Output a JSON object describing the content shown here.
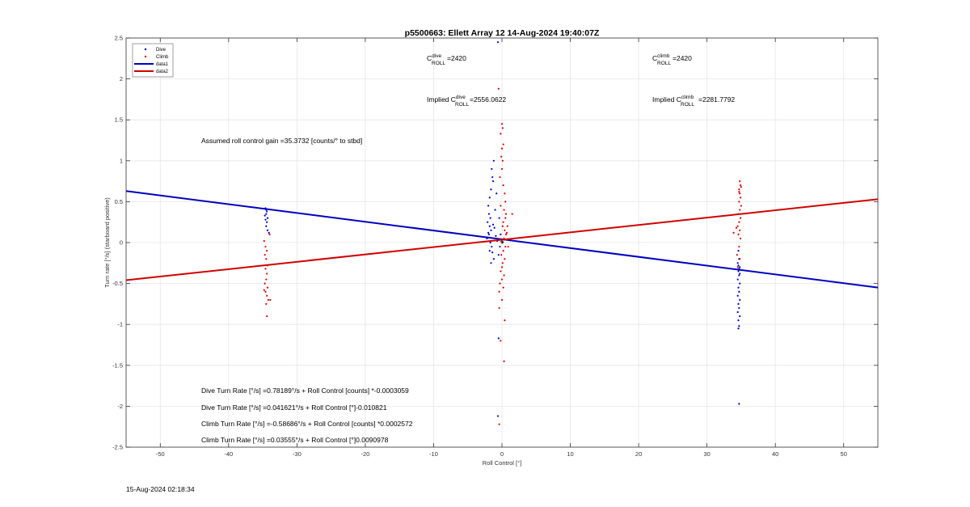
{
  "chart_data": {
    "type": "scatter",
    "title": "p5500663: Ellett Array 12 14-Aug-2024 19:40:07Z",
    "xlabel": "Roll Control [°]",
    "ylabel": "Turn rate [°/s] (starboard positive)",
    "xlim": [
      -55,
      55
    ],
    "ylim": [
      -2.5,
      2.5
    ],
    "xticks": [
      -50,
      -40,
      -30,
      -20,
      -10,
      0,
      10,
      20,
      30,
      40,
      50
    ],
    "yticks": [
      -2.5,
      -2,
      -1.5,
      -1,
      -0.5,
      0,
      0.5,
      1,
      1.5,
      2,
      2.5
    ],
    "grid": true,
    "legend": {
      "position": "top-left",
      "entries": [
        "Dive",
        "Climb",
        "data1",
        "data2"
      ]
    },
    "colors": {
      "dive": "#0000cc",
      "climb": "#dd0000",
      "dive_line": "#0000c0",
      "climb_line": "#d00000"
    },
    "series": [
      {
        "name": "Dive",
        "kind": "points",
        "points": [
          [
            -34.6,
            0.42
          ],
          [
            -34.4,
            0.38
          ],
          [
            -34.5,
            0.35
          ],
          [
            -34.3,
            0.3
          ],
          [
            -34.6,
            0.28
          ],
          [
            -34.4,
            0.25
          ],
          [
            -34.5,
            0.2
          ],
          [
            -34.3,
            0.15
          ],
          [
            -34.1,
            0.12
          ],
          [
            -34.5,
            0.4
          ],
          [
            -34.7,
            0.33
          ],
          [
            -1.2,
            1.0
          ],
          [
            -1.5,
            0.9
          ],
          [
            -1.4,
            0.8
          ],
          [
            -1.3,
            0.75
          ],
          [
            -1.6,
            0.65
          ],
          [
            -1.8,
            0.55
          ],
          [
            -2.0,
            0.45
          ],
          [
            -1.9,
            0.35
          ],
          [
            -1.7,
            0.3
          ],
          [
            -2.1,
            0.25
          ],
          [
            -1.8,
            0.2
          ],
          [
            -1.6,
            0.15
          ],
          [
            -1.9,
            0.1
          ],
          [
            -2.2,
            0.05
          ],
          [
            -1.7,
            0.0
          ],
          [
            -1.5,
            -0.05
          ],
          [
            -1.8,
            -0.1
          ],
          [
            -2.0,
            0.12
          ],
          [
            -1.3,
            0.22
          ],
          [
            -1.1,
            0.18
          ],
          [
            -0.9,
            0.08
          ],
          [
            -0.7,
            0.02
          ],
          [
            -1.4,
            -0.12
          ],
          [
            -1.2,
            -0.2
          ],
          [
            -0.6,
            2.45
          ],
          [
            -0.5,
            -1.17
          ],
          [
            -0.6,
            -2.12
          ],
          [
            -1.0,
            0.4
          ],
          [
            -0.8,
            0.6
          ],
          [
            -0.4,
            0.3
          ],
          [
            -0.3,
            -0.05
          ],
          [
            -0.2,
            0.1
          ],
          [
            -0.5,
            -0.15
          ],
          [
            -1.6,
            -0.25
          ],
          [
            34.6,
            -0.1
          ],
          [
            34.7,
            -0.2
          ],
          [
            34.5,
            -0.25
          ],
          [
            34.8,
            -0.3
          ],
          [
            34.6,
            -0.35
          ],
          [
            34.7,
            -0.4
          ],
          [
            34.5,
            -0.45
          ],
          [
            34.8,
            -0.5
          ],
          [
            34.6,
            -0.55
          ],
          [
            34.7,
            -0.6
          ],
          [
            34.5,
            -0.65
          ],
          [
            34.8,
            -0.7
          ],
          [
            34.6,
            -0.75
          ],
          [
            34.7,
            -0.8
          ],
          [
            34.5,
            -0.85
          ],
          [
            34.8,
            -0.9
          ],
          [
            34.6,
            -0.95
          ],
          [
            34.7,
            -1.02
          ],
          [
            34.6,
            -1.05
          ],
          [
            34.7,
            -0.32
          ],
          [
            34.6,
            -0.28
          ],
          [
            34.8,
            -0.38
          ],
          [
            34.7,
            -1.97
          ]
        ]
      },
      {
        "name": "Climb",
        "kind": "points",
        "points": [
          [
            -34.8,
            0.02
          ],
          [
            -34.6,
            -0.05
          ],
          [
            -34.4,
            -0.1
          ],
          [
            -34.7,
            -0.15
          ],
          [
            -34.5,
            -0.2
          ],
          [
            -34.3,
            -0.28
          ],
          [
            -34.6,
            -0.32
          ],
          [
            -34.4,
            -0.38
          ],
          [
            -34.5,
            -0.45
          ],
          [
            -34.7,
            -0.5
          ],
          [
            -34.3,
            -0.55
          ],
          [
            -34.6,
            -0.6
          ],
          [
            -34.4,
            -0.65
          ],
          [
            -34.2,
            -0.7
          ],
          [
            -34.5,
            -0.75
          ],
          [
            -34.4,
            -0.9
          ],
          [
            -34.0,
            0.1
          ],
          [
            -33.9,
            -0.7
          ],
          [
            -34.8,
            -0.58
          ],
          [
            -0.5,
            1.88
          ],
          [
            0.0,
            1.45
          ],
          [
            0.1,
            1.4
          ],
          [
            -0.2,
            1.33
          ],
          [
            0.2,
            1.2
          ],
          [
            0.0,
            1.15
          ],
          [
            -0.1,
            1.05
          ],
          [
            0.1,
            1.0
          ],
          [
            0.0,
            0.9
          ],
          [
            -0.3,
            0.8
          ],
          [
            0.2,
            0.7
          ],
          [
            0.4,
            0.6
          ],
          [
            0.5,
            0.5
          ],
          [
            -0.2,
            0.45
          ],
          [
            0.3,
            0.4
          ],
          [
            0.6,
            0.35
          ],
          [
            0.5,
            0.3
          ],
          [
            0.2,
            0.25
          ],
          [
            0.1,
            0.2
          ],
          [
            0.4,
            0.15
          ],
          [
            0.6,
            0.1
          ],
          [
            0.3,
            0.05
          ],
          [
            0.1,
            0.0
          ],
          [
            0.5,
            -0.05
          ],
          [
            0.2,
            -0.1
          ],
          [
            -0.1,
            -0.15
          ],
          [
            0.4,
            -0.2
          ],
          [
            0.1,
            -0.25
          ],
          [
            0.0,
            -0.3
          ],
          [
            -0.2,
            -0.35
          ],
          [
            0.3,
            -0.4
          ],
          [
            0.0,
            -0.45
          ],
          [
            -0.3,
            -0.5
          ],
          [
            0.2,
            -0.55
          ],
          [
            -0.4,
            -0.6
          ],
          [
            0.0,
            -0.7
          ],
          [
            -0.4,
            -0.8
          ],
          [
            0.4,
            -0.95
          ],
          [
            -0.2,
            -1.2
          ],
          [
            0.3,
            -1.45
          ],
          [
            -0.4,
            -2.22
          ],
          [
            1.5,
            0.35
          ],
          [
            0.8,
            0.2
          ],
          [
            0.9,
            -0.05
          ],
          [
            0.7,
            0.12
          ],
          [
            34.8,
            0.75
          ],
          [
            34.9,
            0.7
          ],
          [
            34.7,
            0.65
          ],
          [
            34.8,
            0.6
          ],
          [
            34.9,
            0.55
          ],
          [
            34.7,
            0.5
          ],
          [
            35.0,
            0.45
          ],
          [
            34.8,
            0.4
          ],
          [
            34.6,
            0.35
          ],
          [
            34.9,
            0.3
          ],
          [
            34.7,
            0.25
          ],
          [
            34.5,
            0.2
          ],
          [
            34.8,
            0.15
          ],
          [
            34.3,
            0.18
          ],
          [
            33.9,
            0.12
          ],
          [
            34.6,
            0.1
          ],
          [
            34.9,
            0.05
          ],
          [
            34.7,
            -0.05
          ],
          [
            34.4,
            -0.15
          ],
          [
            34.8,
            -0.2
          ],
          [
            34.5,
            -0.3
          ],
          [
            34.7,
            0.62
          ],
          [
            35.0,
            0.68
          ]
        ]
      },
      {
        "name": "data1",
        "kind": "line",
        "x": [
          -55,
          55
        ],
        "y": [
          0.63,
          -0.55
        ]
      },
      {
        "name": "data2",
        "kind": "line",
        "x": [
          -55,
          55
        ],
        "y": [
          -0.46,
          0.53
        ]
      }
    ]
  },
  "annotations": {
    "c_dive_base": "C",
    "c_dive_sup": "dive",
    "c_dive_sub": "ROLL",
    "c_dive_value": " =2420",
    "c_climb_base": "C",
    "c_climb_sup": "climb",
    "c_climb_sub": "ROLL",
    "c_climb_value": " =2420",
    "implied_dive_prefix": "Implied C",
    "implied_dive_sup": "dive",
    "implied_dive_sub": "ROLL",
    "implied_dive_value": " =2556.0622",
    "implied_climb_prefix": "Implied C",
    "implied_climb_sup": "climb",
    "implied_climb_sub": "ROLL",
    "implied_climb_value": "=2281.7792",
    "gain": "Assumed roll control gain =35.3732 [counts/° to stbd]",
    "eq1": "Dive Turn Rate [°/s] =0.78189°/s + Roll Control [counts] *-0.0003059",
    "eq2": "Dive Turn Rate [°/s] =0.041621°/s + Roll Control [°]-0.010821",
    "eq3": "Climb Turn Rate [°/s] =-0.58686°/s + Roll Control [counts] *0.0002572",
    "eq4": "Climb Turn Rate [°/s] =0.03555°/s + Roll Control [°]0.0090978"
  },
  "footer": {
    "timestamp": "15-Aug-2024 02:18:34"
  }
}
